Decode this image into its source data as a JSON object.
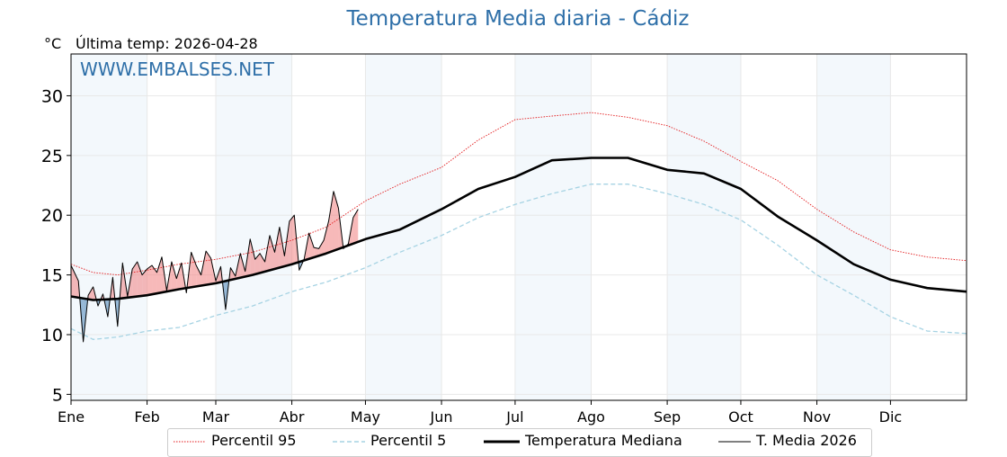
{
  "header": {
    "title": "Temperatura Media diaria - Cádiz",
    "unit": "°C",
    "last_update": "Última temp: 2026-04-28"
  },
  "watermark": "WWW.EMBALSES.NET",
  "chart_data": {
    "type": "line",
    "title": "Temperatura Media diaria - Cádiz",
    "ylabel": "°C",
    "ylim": [
      4.5,
      33.5
    ],
    "yticks": [
      5,
      10,
      15,
      20,
      25,
      30
    ],
    "xlim": [
      1,
      366
    ],
    "month_labels": [
      "Ene",
      "Feb",
      "Mar",
      "Abr",
      "May",
      "Jun",
      "Jul",
      "Ago",
      "Sep",
      "Oct",
      "Nov",
      "Dic"
    ],
    "month_start_days": [
      1,
      32,
      60,
      91,
      121,
      152,
      182,
      213,
      244,
      274,
      305,
      335
    ],
    "grid": true,
    "alternating_month_shading": true,
    "legend_position": "bottom-center",
    "colors": {
      "p95": "#e31a1c",
      "p5": "#a6d3e3",
      "median": "#000000",
      "current": "#000000",
      "above_fill": "#f08080",
      "below_fill": "#4682b4",
      "title": "#2e6fa8"
    },
    "series": [
      {
        "name": "Percentil 95",
        "style": "dotted",
        "x": [
          1,
          10,
          20,
          32,
          45,
          60,
          75,
          91,
          105,
          121,
          135,
          152,
          167,
          182,
          197,
          213,
          228,
          244,
          259,
          274,
          289,
          305,
          320,
          335,
          350,
          366
        ],
        "values": [
          15.9,
          15.2,
          15.0,
          15.4,
          15.9,
          16.3,
          16.9,
          17.9,
          19.0,
          21.2,
          22.6,
          24.0,
          26.3,
          28.0,
          28.3,
          28.6,
          28.2,
          27.5,
          26.2,
          24.5,
          22.9,
          20.5,
          18.6,
          17.1,
          16.5,
          16.2
        ]
      },
      {
        "name": "Percentil 5",
        "style": "dashed",
        "x": [
          1,
          10,
          20,
          32,
          45,
          60,
          75,
          91,
          105,
          121,
          135,
          152,
          167,
          182,
          197,
          213,
          228,
          244,
          259,
          274,
          289,
          305,
          320,
          335,
          350,
          366
        ],
        "values": [
          10.5,
          9.6,
          9.8,
          10.3,
          10.6,
          11.6,
          12.4,
          13.6,
          14.4,
          15.6,
          16.9,
          18.3,
          19.8,
          20.9,
          21.8,
          22.6,
          22.6,
          21.8,
          20.9,
          19.6,
          17.5,
          15.0,
          13.3,
          11.5,
          10.3,
          10.1
        ]
      },
      {
        "name": "Temperatura Mediana",
        "style": "solid-thick",
        "x": [
          1,
          10,
          20,
          32,
          45,
          60,
          75,
          91,
          105,
          121,
          135,
          152,
          167,
          182,
          197,
          213,
          228,
          244,
          259,
          274,
          289,
          305,
          320,
          335,
          350,
          366
        ],
        "values": [
          13.2,
          12.9,
          13.0,
          13.3,
          13.8,
          14.3,
          15.0,
          15.9,
          16.8,
          18.0,
          18.8,
          20.5,
          22.2,
          23.2,
          24.6,
          24.8,
          24.8,
          23.8,
          23.5,
          22.2,
          19.9,
          17.9,
          15.9,
          14.6,
          13.9,
          13.6
        ]
      },
      {
        "name": "T. Media 2026",
        "style": "solid-thin",
        "x": [
          1,
          4,
          6,
          8,
          10,
          12,
          14,
          16,
          18,
          20,
          22,
          24,
          26,
          28,
          30,
          32,
          34,
          36,
          38,
          40,
          42,
          44,
          46,
          48,
          50,
          52,
          54,
          56,
          58,
          60,
          62,
          64,
          66,
          68,
          70,
          72,
          74,
          76,
          78,
          80,
          82,
          84,
          86,
          88,
          90,
          92,
          94,
          96,
          98,
          100,
          102,
          104,
          106,
          108,
          110,
          112,
          114,
          116,
          118
        ],
        "values": [
          15.8,
          14.5,
          9.4,
          13.3,
          14.0,
          12.4,
          13.4,
          11.5,
          14.8,
          10.7,
          16.0,
          13.2,
          15.5,
          16.1,
          15.0,
          15.5,
          15.8,
          15.2,
          16.5,
          13.7,
          16.1,
          14.7,
          16.0,
          13.5,
          16.9,
          15.8,
          15.0,
          17.0,
          16.4,
          14.5,
          15.7,
          12.1,
          15.6,
          14.9,
          16.8,
          15.3,
          18.0,
          16.3,
          16.8,
          16.1,
          18.3,
          16.9,
          19.0,
          16.6,
          19.5,
          20.0,
          15.4,
          16.3,
          18.5,
          17.3,
          17.2,
          17.9,
          19.5,
          22.0,
          20.6,
          17.2,
          17.6,
          19.8,
          20.5
        ]
      }
    ]
  },
  "legend": {
    "items": [
      "Percentil 95",
      "Percentil 5",
      "Temperatura Mediana",
      "T. Media 2026"
    ]
  }
}
